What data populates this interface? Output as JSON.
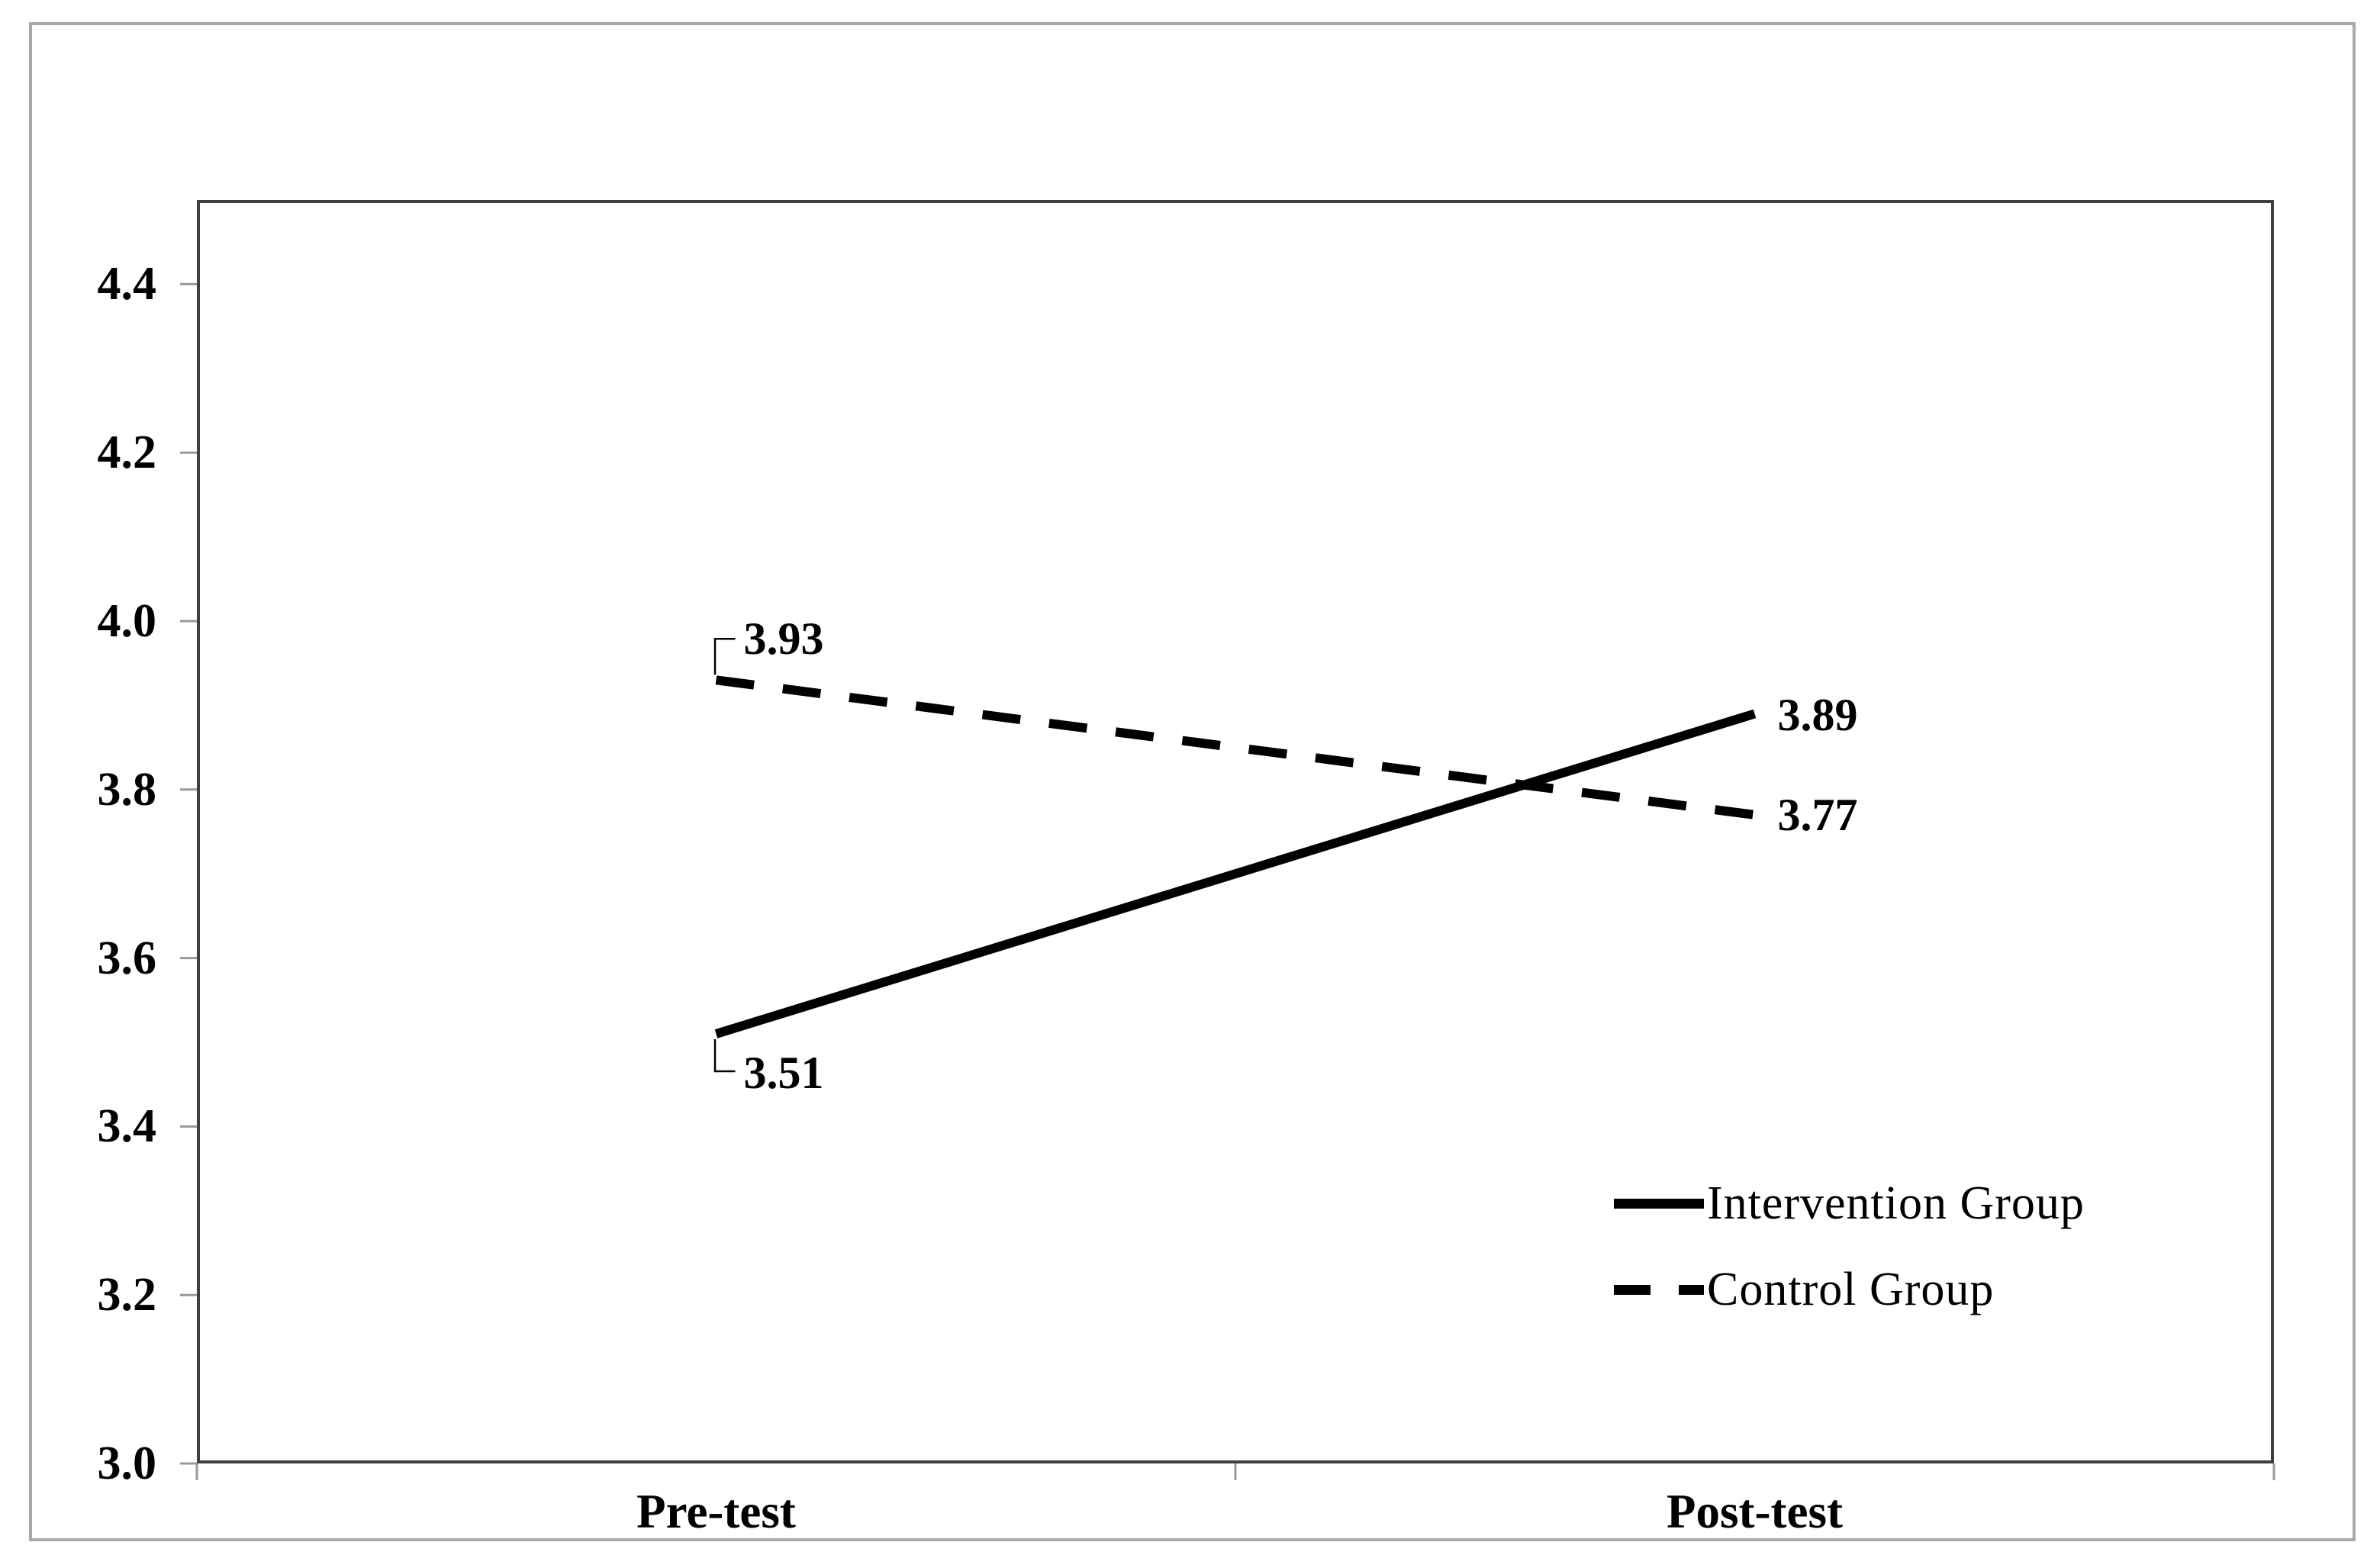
{
  "chart_data": {
    "type": "line",
    "categories": [
      "Pre-test",
      "Post-test"
    ],
    "series": [
      {
        "name": "Intervention Group",
        "style": "solid",
        "values": [
          3.51,
          3.89
        ],
        "labels": [
          "3.51",
          "3.89"
        ]
      },
      {
        "name": "Control Group",
        "style": "dashed",
        "values": [
          3.93,
          3.77
        ],
        "labels": [
          "3.93",
          "3.77"
        ]
      }
    ],
    "ylim": [
      3.0,
      4.5
    ],
    "yticks": [
      "3.0",
      "3.2",
      "3.4",
      "3.6",
      "3.8",
      "4.0",
      "4.2",
      "4.4"
    ],
    "xlabel": "",
    "ylabel": "",
    "title": "",
    "grid": false,
    "legend_position": "lower-right",
    "line_color": "#000000",
    "axis_color": "#3f3f3f",
    "tick_color": "#999999",
    "frame_color": "#a9a9a9"
  }
}
